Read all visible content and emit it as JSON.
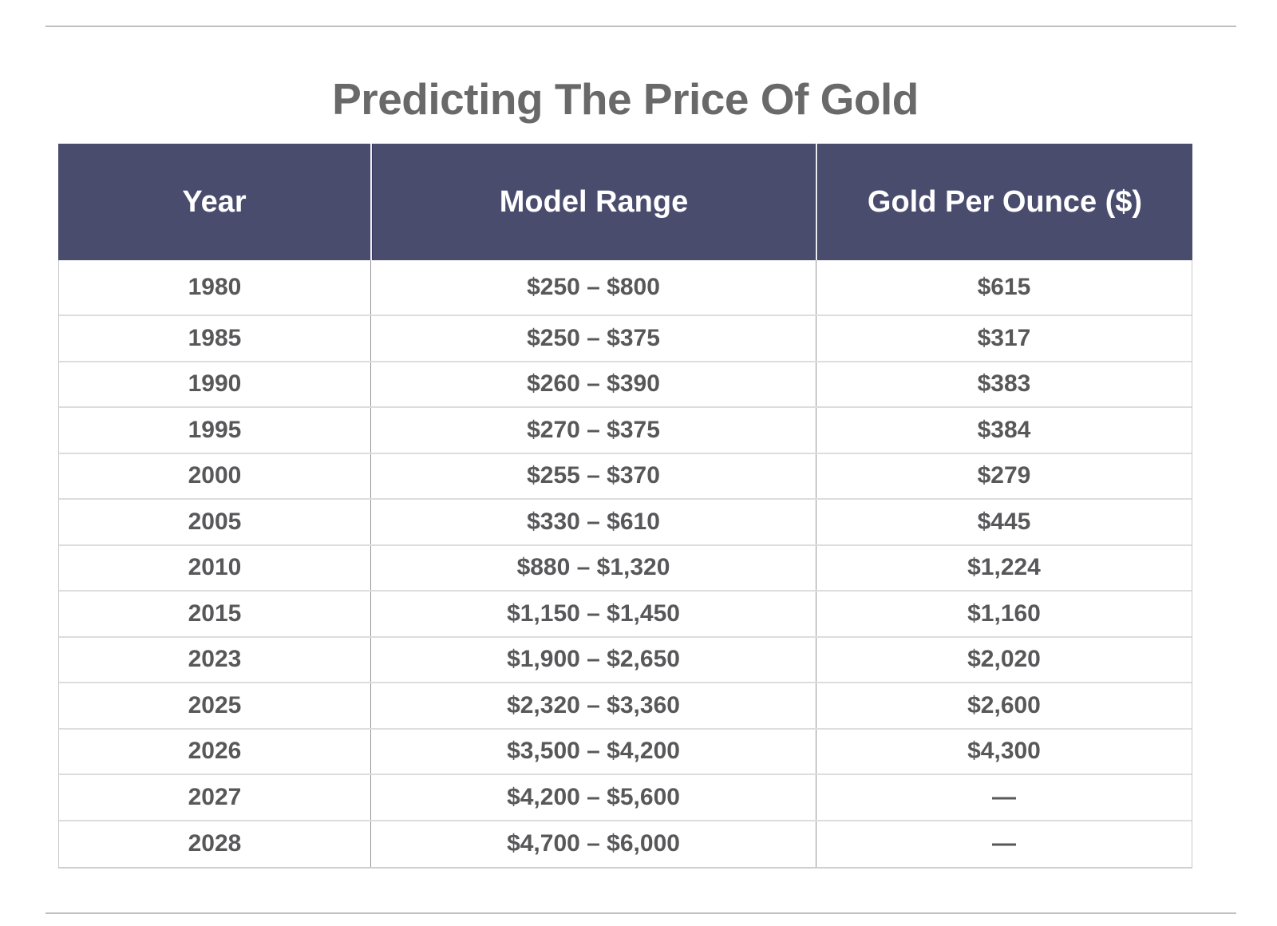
{
  "chart_data": {
    "type": "table",
    "title": "Predicting The Price Of Gold",
    "columns": [
      "Year",
      "Model Range",
      "Gold Per Ounce ($)"
    ],
    "rows": [
      [
        "1980",
        "$250 – $800",
        "$615"
      ],
      [
        "1985",
        "$250 – $375",
        "$317"
      ],
      [
        "1990",
        "$260 – $390",
        "$383"
      ],
      [
        "1995",
        "$270 – $375",
        "$384"
      ],
      [
        "2000",
        "$255 – $370",
        "$279"
      ],
      [
        "2005",
        "$330 – $610",
        "$445"
      ],
      [
        "2010",
        "$880 – $1,320",
        "$1,224"
      ],
      [
        "2015",
        "$1,150 – $1,450",
        "$1,160"
      ],
      [
        "2023",
        "$1,900 – $2,650",
        "$2,020"
      ],
      [
        "2025",
        "$2,320 – $3,360",
        "$2,600"
      ],
      [
        "2026",
        "$3,500 – $4,200",
        "$4,300"
      ],
      [
        "2027",
        "$4,200 – $5,600",
        "—"
      ],
      [
        "2028",
        "$4,700 – $6,000",
        "—"
      ]
    ],
    "years": [
      1980,
      1985,
      1990,
      1995,
      2000,
      2005,
      2010,
      2015,
      2023,
      2025,
      2026,
      2027,
      2028
    ],
    "model_range_low": [
      250,
      250,
      260,
      270,
      255,
      330,
      880,
      1150,
      1900,
      2320,
      3500,
      4200,
      4700
    ],
    "model_range_high": [
      800,
      375,
      390,
      375,
      370,
      610,
      1320,
      1450,
      2650,
      3360,
      4200,
      5600,
      6000
    ],
    "gold_per_ounce": [
      615,
      317,
      383,
      384,
      279,
      445,
      1224,
      1160,
      2020,
      2600,
      4300,
      null,
      null
    ],
    "missing_value_symbol": "—"
  },
  "colors": {
    "header_bg": "#4a4c6e",
    "header_text": "#ffffff",
    "title_text": "#696969",
    "body_text": "#58585a",
    "rule_line": "#c0c0c2"
  }
}
